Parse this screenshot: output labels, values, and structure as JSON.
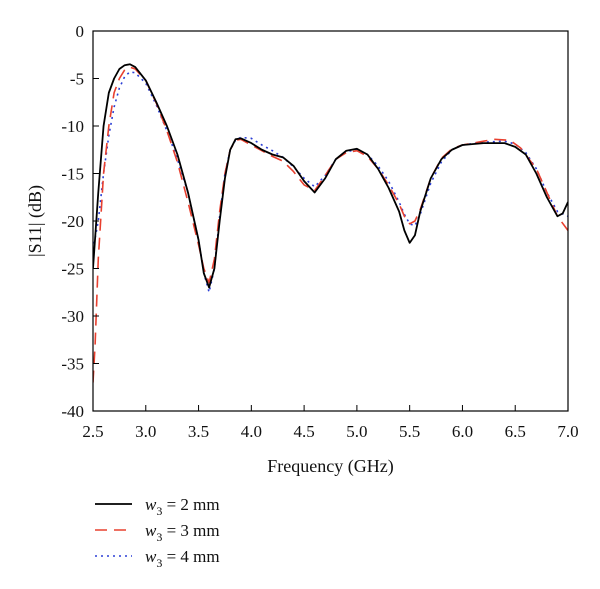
{
  "chart_data": {
    "type": "line",
    "title": "",
    "xlabel": "Frequency (GHz)",
    "ylabel": "|S11| (dB)",
    "xlim": [
      2.5,
      7.0
    ],
    "ylim": [
      -40,
      0
    ],
    "xticks": [
      "2.5",
      "3.0",
      "3.5",
      "4.0",
      "4.5",
      "5.0",
      "5.5",
      "6.0",
      "6.5",
      "7.0"
    ],
    "yticks": [
      "0",
      "-5",
      "-10",
      "-15",
      "-20",
      "-25",
      "-30",
      "-35",
      "-40"
    ],
    "grid": false,
    "legend_position": "bottom-left",
    "series": [
      {
        "name": "w3 = 2 mm",
        "name_var": "w",
        "name_sub": "3",
        "name_rest": " = 2 mm",
        "color": "#000000",
        "dash": "solid",
        "points": [
          [
            2.5,
            -25
          ],
          [
            2.55,
            -17
          ],
          [
            2.6,
            -10
          ],
          [
            2.65,
            -6.5
          ],
          [
            2.7,
            -5
          ],
          [
            2.75,
            -4
          ],
          [
            2.8,
            -3.6
          ],
          [
            2.85,
            -3.5
          ],
          [
            2.9,
            -3.8
          ],
          [
            3.0,
            -5.2
          ],
          [
            3.1,
            -7.5
          ],
          [
            3.2,
            -10
          ],
          [
            3.3,
            -13
          ],
          [
            3.4,
            -17
          ],
          [
            3.5,
            -22
          ],
          [
            3.55,
            -25.5
          ],
          [
            3.6,
            -27
          ],
          [
            3.65,
            -25
          ],
          [
            3.7,
            -20
          ],
          [
            3.75,
            -15.5
          ],
          [
            3.8,
            -12.5
          ],
          [
            3.85,
            -11.4
          ],
          [
            3.9,
            -11.3
          ],
          [
            4.0,
            -11.8
          ],
          [
            4.1,
            -12.5
          ],
          [
            4.2,
            -13
          ],
          [
            4.3,
            -13.3
          ],
          [
            4.4,
            -14.2
          ],
          [
            4.5,
            -15.8
          ],
          [
            4.6,
            -17
          ],
          [
            4.7,
            -15.5
          ],
          [
            4.8,
            -13.5
          ],
          [
            4.9,
            -12.6
          ],
          [
            5.0,
            -12.4
          ],
          [
            5.1,
            -13
          ],
          [
            5.2,
            -14.5
          ],
          [
            5.3,
            -16.5
          ],
          [
            5.4,
            -19
          ],
          [
            5.45,
            -21
          ],
          [
            5.5,
            -22.3
          ],
          [
            5.55,
            -21.5
          ],
          [
            5.6,
            -19
          ],
          [
            5.7,
            -15.5
          ],
          [
            5.8,
            -13.5
          ],
          [
            5.9,
            -12.5
          ],
          [
            6.0,
            -12
          ],
          [
            6.2,
            -11.8
          ],
          [
            6.4,
            -11.8
          ],
          [
            6.5,
            -12.2
          ],
          [
            6.6,
            -13
          ],
          [
            6.7,
            -15
          ],
          [
            6.8,
            -17.5
          ],
          [
            6.9,
            -19.5
          ],
          [
            6.95,
            -19.2
          ],
          [
            7.0,
            -18
          ]
        ]
      },
      {
        "name": "w3 = 3 mm",
        "name_var": "w",
        "name_sub": "3",
        "name_rest": " = 3 mm",
        "color": "#e8402f",
        "dash": "12 7",
        "points": [
          [
            2.5,
            -37
          ],
          [
            2.52,
            -33
          ],
          [
            2.55,
            -24
          ],
          [
            2.6,
            -15
          ],
          [
            2.65,
            -10
          ],
          [
            2.7,
            -6.5
          ],
          [
            2.75,
            -5
          ],
          [
            2.8,
            -4.1
          ],
          [
            2.85,
            -3.8
          ],
          [
            2.9,
            -4
          ],
          [
            3.0,
            -5.2
          ],
          [
            3.1,
            -7.6
          ],
          [
            3.2,
            -10.5
          ],
          [
            3.3,
            -13.8
          ],
          [
            3.4,
            -18
          ],
          [
            3.5,
            -22.5
          ],
          [
            3.55,
            -25
          ],
          [
            3.6,
            -26.5
          ],
          [
            3.65,
            -24
          ],
          [
            3.7,
            -19
          ],
          [
            3.75,
            -15
          ],
          [
            3.8,
            -12.5
          ],
          [
            3.85,
            -11.5
          ],
          [
            3.9,
            -11.4
          ],
          [
            4.0,
            -12
          ],
          [
            4.1,
            -12.6
          ],
          [
            4.2,
            -13.2
          ],
          [
            4.3,
            -13.7
          ],
          [
            4.4,
            -14.8
          ],
          [
            4.5,
            -16.2
          ],
          [
            4.6,
            -16.8
          ],
          [
            4.7,
            -15.2
          ],
          [
            4.8,
            -13.5
          ],
          [
            4.9,
            -12.8
          ],
          [
            5.0,
            -12.6
          ],
          [
            5.1,
            -13.2
          ],
          [
            5.2,
            -14.5
          ],
          [
            5.3,
            -16.2
          ],
          [
            5.4,
            -18.2
          ],
          [
            5.45,
            -19.5
          ],
          [
            5.5,
            -20.3
          ],
          [
            5.55,
            -20
          ],
          [
            5.6,
            -18.8
          ],
          [
            5.7,
            -15.5
          ],
          [
            5.8,
            -13.4
          ],
          [
            5.9,
            -12.4
          ],
          [
            6.0,
            -12
          ],
          [
            6.2,
            -11.6
          ],
          [
            6.3,
            -11.4
          ],
          [
            6.45,
            -11.5
          ],
          [
            6.55,
            -12.3
          ],
          [
            6.7,
            -14.5
          ],
          [
            6.8,
            -17
          ],
          [
            6.9,
            -19.5
          ],
          [
            7.0,
            -21
          ]
        ]
      },
      {
        "name": "w3 = 4 mm",
        "name_var": "w",
        "name_sub": "3",
        "name_rest": " = 4 mm",
        "color": "#2b3fd6",
        "dash": "2 4",
        "points": [
          [
            2.5,
            -23
          ],
          [
            2.55,
            -20
          ],
          [
            2.6,
            -15
          ],
          [
            2.65,
            -11
          ],
          [
            2.7,
            -8
          ],
          [
            2.75,
            -6
          ],
          [
            2.8,
            -4.8
          ],
          [
            2.85,
            -4.3
          ],
          [
            2.9,
            -4.4
          ],
          [
            3.0,
            -5.5
          ],
          [
            3.1,
            -7.8
          ],
          [
            3.2,
            -10.5
          ],
          [
            3.3,
            -13.5
          ],
          [
            3.4,
            -17
          ],
          [
            3.5,
            -22
          ],
          [
            3.55,
            -25.5
          ],
          [
            3.6,
            -27.5
          ],
          [
            3.65,
            -25
          ],
          [
            3.7,
            -19.5
          ],
          [
            3.75,
            -15
          ],
          [
            3.8,
            -12.5
          ],
          [
            3.85,
            -11.5
          ],
          [
            3.9,
            -11.2
          ],
          [
            4.0,
            -11.3
          ],
          [
            4.1,
            -12
          ],
          [
            4.2,
            -12.6
          ],
          [
            4.3,
            -13.3
          ],
          [
            4.4,
            -14.3
          ],
          [
            4.5,
            -15.5
          ],
          [
            4.6,
            -16.4
          ],
          [
            4.7,
            -15.2
          ],
          [
            4.8,
            -13.5
          ],
          [
            4.9,
            -12.7
          ],
          [
            5.0,
            -12.5
          ],
          [
            5.1,
            -13
          ],
          [
            5.2,
            -14.2
          ],
          [
            5.3,
            -15.8
          ],
          [
            5.4,
            -18
          ],
          [
            5.45,
            -19.3
          ],
          [
            5.5,
            -20.3
          ],
          [
            5.55,
            -20.5
          ],
          [
            5.6,
            -19.3
          ],
          [
            5.7,
            -16
          ],
          [
            5.8,
            -13.8
          ],
          [
            5.9,
            -12.5
          ],
          [
            6.0,
            -12
          ],
          [
            6.2,
            -11.7
          ],
          [
            6.4,
            -11.6
          ],
          [
            6.5,
            -11.9
          ],
          [
            6.6,
            -12.8
          ],
          [
            6.7,
            -14.5
          ],
          [
            6.8,
            -17
          ],
          [
            6.9,
            -19
          ],
          [
            7.0,
            -19.5
          ]
        ]
      }
    ]
  }
}
